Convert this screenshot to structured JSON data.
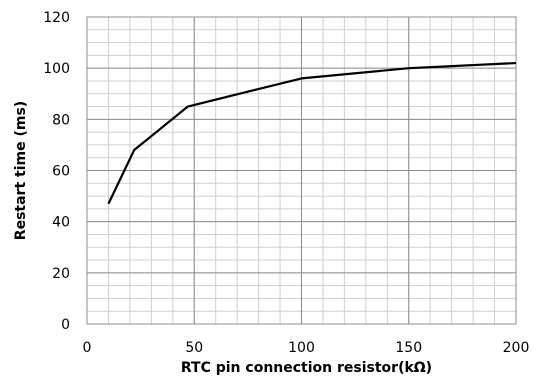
{
  "chart_data": {
    "type": "line",
    "xlabel": "RTC pin connection resistor(kΩ)",
    "ylabel": "Restart time (ms)",
    "xlim": [
      0,
      200
    ],
    "ylim": [
      0,
      120
    ],
    "x_ticks": [
      "0",
      "50",
      "100",
      "150",
      "200"
    ],
    "y_ticks": [
      "0",
      "20",
      "40",
      "60",
      "80",
      "100",
      "120"
    ],
    "grid": true,
    "series": [
      {
        "x": [
          10,
          22,
          47,
          100,
          150,
          200
        ],
        "values": [
          47,
          68,
          85,
          96,
          100,
          102
        ]
      }
    ]
  }
}
